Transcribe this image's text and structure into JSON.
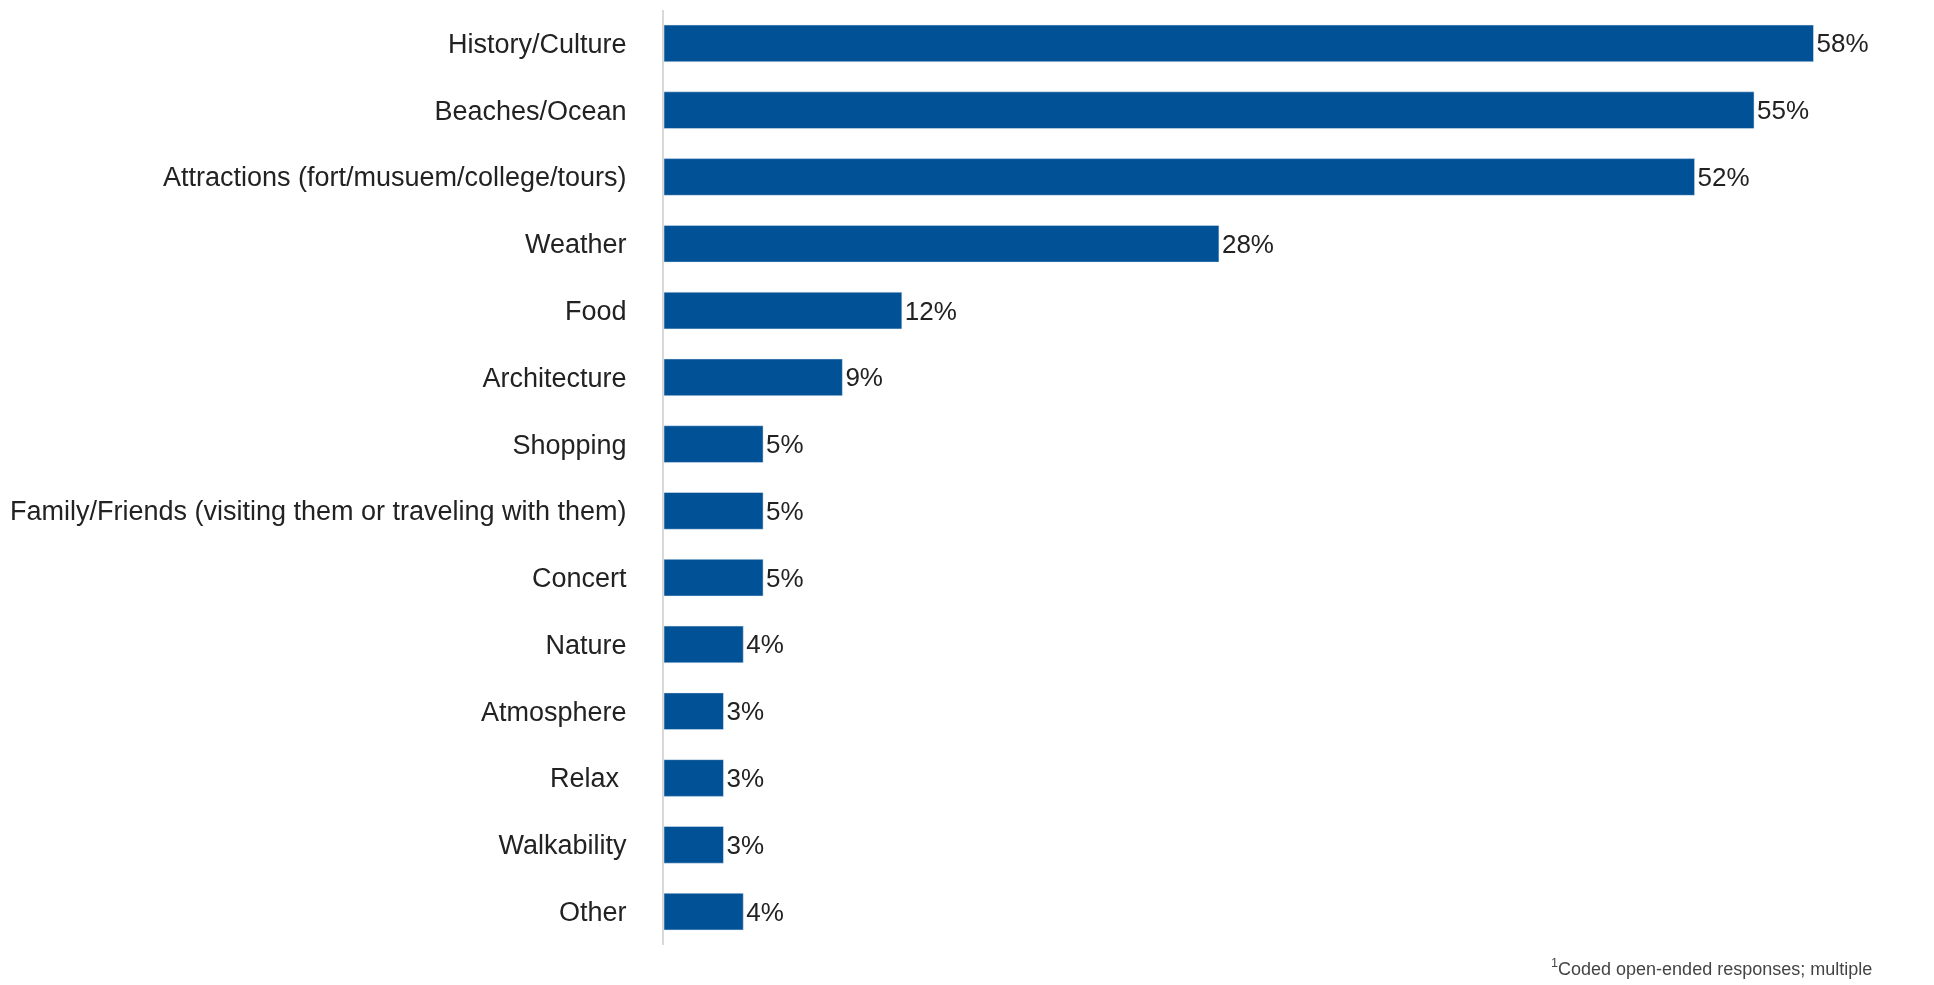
{
  "chart_data": {
    "type": "bar",
    "orientation": "horizontal",
    "categories": [
      "History/Culture",
      "Beaches/Ocean",
      "Attractions (fort/musuem/college/tours)",
      "Weather",
      "Food",
      "Architecture",
      "Shopping",
      "Family/Friends (visiting them or traveling with them)",
      "Concert",
      "Nature",
      "Atmosphere",
      "Relax ",
      "Walkability",
      "Other"
    ],
    "values": [
      58,
      55,
      52,
      28,
      12,
      9,
      5,
      5,
      5,
      4,
      3,
      3,
      3,
      4
    ],
    "value_labels": [
      "58%",
      "55%",
      "52%",
      "28%",
      "12%",
      "9%",
      "5%",
      "5%",
      "5%",
      "4%",
      "3%",
      "3%",
      "3%",
      "4%"
    ],
    "color": "#005195",
    "legend": false,
    "annotations": [
      "$^{1}$Coded open-ended responses; multiple"
    ]
  }
}
